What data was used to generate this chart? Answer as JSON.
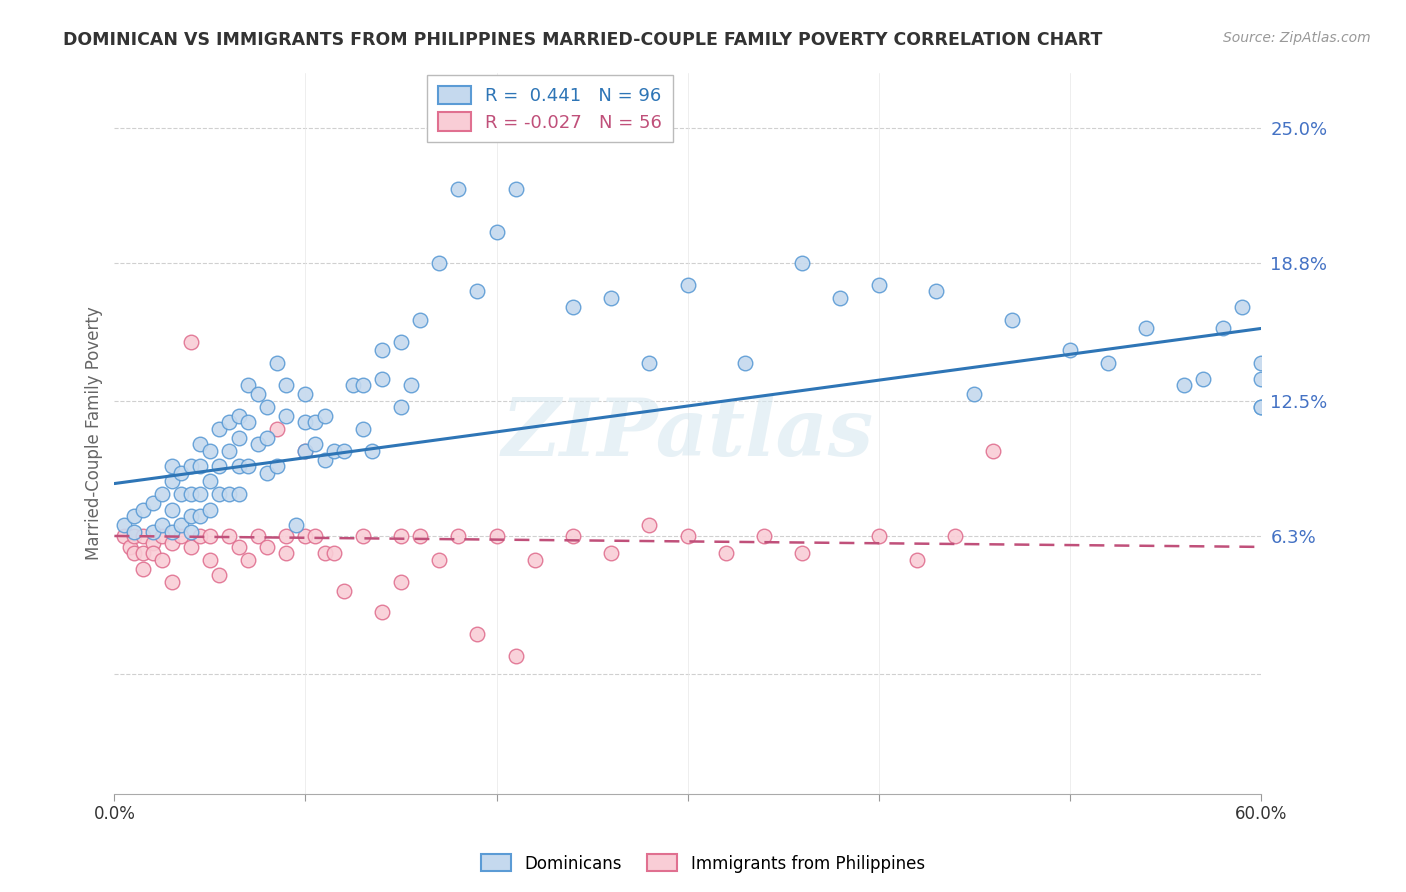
{
  "title": "DOMINICAN VS IMMIGRANTS FROM PHILIPPINES MARRIED-COUPLE FAMILY POVERTY CORRELATION CHART",
  "source": "Source: ZipAtlas.com",
  "ylabel": "Married-Couple Family Poverty",
  "yticks": [
    0.0,
    0.063,
    0.125,
    0.188,
    0.25
  ],
  "ytick_labels": [
    "",
    "6.3%",
    "12.5%",
    "18.8%",
    "25.0%"
  ],
  "xlim": [
    0.0,
    0.6
  ],
  "ylim": [
    -0.055,
    0.275
  ],
  "blue_R": 0.441,
  "blue_N": 96,
  "pink_R": -0.027,
  "pink_N": 56,
  "legend_blue_label": "Dominicans",
  "legend_pink_label": "Immigrants from Philippines",
  "blue_color": "#c5d9ee",
  "blue_edge_color": "#5b9bd5",
  "blue_line_color": "#2e75b6",
  "pink_color": "#f9cdd6",
  "pink_edge_color": "#e07090",
  "pink_line_color": "#c0507a",
  "ytick_color": "#4472c4",
  "watermark_text": "ZIPatlas",
  "blue_line_start_y": 0.087,
  "blue_line_end_y": 0.158,
  "pink_line_start_y": 0.063,
  "pink_line_end_y": 0.058,
  "blue_scatter_x": [
    0.005,
    0.01,
    0.01,
    0.015,
    0.02,
    0.02,
    0.025,
    0.025,
    0.03,
    0.03,
    0.03,
    0.03,
    0.035,
    0.035,
    0.035,
    0.04,
    0.04,
    0.04,
    0.04,
    0.045,
    0.045,
    0.045,
    0.045,
    0.05,
    0.05,
    0.05,
    0.055,
    0.055,
    0.055,
    0.06,
    0.06,
    0.06,
    0.065,
    0.065,
    0.065,
    0.065,
    0.07,
    0.07,
    0.07,
    0.075,
    0.075,
    0.08,
    0.08,
    0.08,
    0.085,
    0.085,
    0.09,
    0.09,
    0.095,
    0.1,
    0.1,
    0.1,
    0.105,
    0.105,
    0.11,
    0.11,
    0.115,
    0.12,
    0.125,
    0.13,
    0.13,
    0.135,
    0.14,
    0.14,
    0.15,
    0.15,
    0.155,
    0.16,
    0.17,
    0.18,
    0.19,
    0.2,
    0.21,
    0.22,
    0.24,
    0.26,
    0.28,
    0.3,
    0.33,
    0.36,
    0.38,
    0.4,
    0.43,
    0.45,
    0.47,
    0.5,
    0.52,
    0.54,
    0.56,
    0.57,
    0.58,
    0.59,
    0.6,
    0.6,
    0.6,
    0.6
  ],
  "blue_scatter_y": [
    0.068,
    0.072,
    0.065,
    0.075,
    0.078,
    0.065,
    0.082,
    0.068,
    0.088,
    0.075,
    0.065,
    0.095,
    0.092,
    0.082,
    0.068,
    0.095,
    0.082,
    0.072,
    0.065,
    0.105,
    0.095,
    0.082,
    0.072,
    0.102,
    0.088,
    0.075,
    0.112,
    0.095,
    0.082,
    0.115,
    0.102,
    0.082,
    0.118,
    0.108,
    0.095,
    0.082,
    0.132,
    0.115,
    0.095,
    0.105,
    0.128,
    0.122,
    0.108,
    0.092,
    0.142,
    0.095,
    0.132,
    0.118,
    0.068,
    0.128,
    0.115,
    0.102,
    0.105,
    0.115,
    0.118,
    0.098,
    0.102,
    0.102,
    0.132,
    0.132,
    0.112,
    0.102,
    0.148,
    0.135,
    0.122,
    0.152,
    0.132,
    0.162,
    0.188,
    0.222,
    0.175,
    0.202,
    0.222,
    0.252,
    0.168,
    0.172,
    0.142,
    0.178,
    0.142,
    0.188,
    0.172,
    0.178,
    0.175,
    0.128,
    0.162,
    0.148,
    0.142,
    0.158,
    0.132,
    0.135,
    0.158,
    0.168,
    0.122,
    0.142,
    0.135,
    0.122
  ],
  "pink_scatter_x": [
    0.005,
    0.008,
    0.01,
    0.01,
    0.015,
    0.015,
    0.015,
    0.02,
    0.02,
    0.025,
    0.025,
    0.03,
    0.03,
    0.035,
    0.04,
    0.04,
    0.045,
    0.05,
    0.05,
    0.055,
    0.06,
    0.065,
    0.07,
    0.075,
    0.08,
    0.085,
    0.09,
    0.09,
    0.1,
    0.1,
    0.105,
    0.11,
    0.115,
    0.12,
    0.13,
    0.14,
    0.15,
    0.15,
    0.16,
    0.17,
    0.18,
    0.19,
    0.2,
    0.21,
    0.22,
    0.24,
    0.26,
    0.28,
    0.3,
    0.32,
    0.34,
    0.36,
    0.4,
    0.42,
    0.44,
    0.46
  ],
  "pink_scatter_y": [
    0.063,
    0.058,
    0.063,
    0.055,
    0.063,
    0.055,
    0.048,
    0.06,
    0.055,
    0.063,
    0.052,
    0.042,
    0.06,
    0.063,
    0.058,
    0.152,
    0.063,
    0.063,
    0.052,
    0.045,
    0.063,
    0.058,
    0.052,
    0.063,
    0.058,
    0.112,
    0.063,
    0.055,
    0.063,
    0.102,
    0.063,
    0.055,
    0.055,
    0.038,
    0.063,
    0.028,
    0.063,
    0.042,
    0.063,
    0.052,
    0.063,
    0.018,
    0.063,
    0.008,
    0.052,
    0.063,
    0.055,
    0.068,
    0.063,
    0.055,
    0.063,
    0.055,
    0.063,
    0.052,
    0.063,
    0.102
  ]
}
